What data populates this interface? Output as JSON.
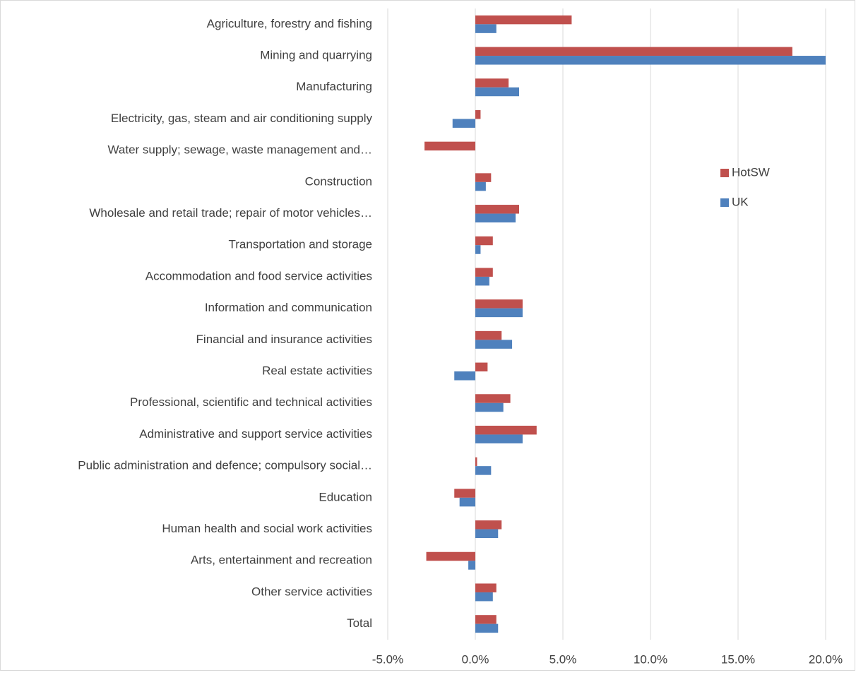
{
  "chart_data": {
    "type": "hbar",
    "categories": [
      "Agriculture, forestry and fishing",
      "Mining and quarrying",
      "Manufacturing",
      "Electricity, gas, steam and air conditioning supply",
      "Water supply; sewage, waste management and…",
      "Construction",
      "Wholesale and retail trade; repair of motor vehicles…",
      "Transportation and storage",
      "Accommodation and food service activities",
      "Information and communication",
      "Financial and insurance activities",
      "Real estate activities",
      "Professional, scientific and technical activities",
      "Administrative and support service activities",
      "Public administration and defence; compulsory social…",
      "Education",
      "Human health and social work activities",
      "Arts, entertainment and recreation",
      "Other service activities",
      "Total"
    ],
    "series": [
      {
        "name": "HotSW",
        "color": "#c0504d",
        "values": [
          5.5,
          18.1,
          1.9,
          0.3,
          -2.9,
          0.9,
          2.5,
          1.0,
          1.0,
          2.7,
          1.5,
          0.7,
          2.0,
          3.5,
          0.1,
          -1.2,
          1.5,
          -2.8,
          1.2,
          1.2
        ]
      },
      {
        "name": "UK",
        "color": "#4f81bd",
        "values": [
          1.2,
          20.0,
          2.5,
          -1.3,
          0,
          0.6,
          2.3,
          0.3,
          0.8,
          2.7,
          2.1,
          -1.2,
          1.6,
          2.7,
          0.9,
          -0.9,
          1.3,
          -0.4,
          1.0,
          1.3
        ]
      }
    ],
    "xlim": [
      -5,
      21
    ],
    "xticks": [
      {
        "value": -5,
        "label": "-5.0%"
      },
      {
        "value": 0,
        "label": "0.0%"
      },
      {
        "value": 5,
        "label": "5.0%"
      },
      {
        "value": 10,
        "label": "10.0%"
      },
      {
        "value": 15,
        "label": "15.0%"
      },
      {
        "value": 20,
        "label": "20.0%"
      }
    ],
    "grid": true,
    "legend": "right"
  }
}
